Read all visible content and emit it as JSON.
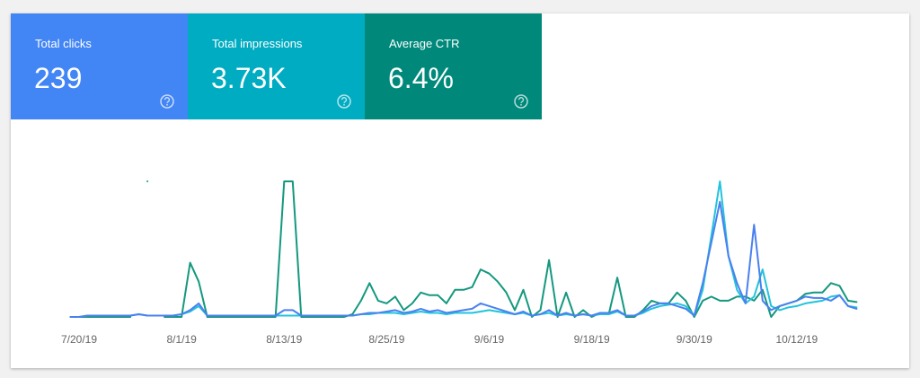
{
  "cards": [
    {
      "label": "Total clicks",
      "value": "239",
      "color": "#4285f4"
    },
    {
      "label": "Total impressions",
      "value": "3.73K",
      "color": "#00acc1"
    },
    {
      "label": "Average CTR",
      "value": "6.4%",
      "color": "#00897b"
    }
  ],
  "chart_data": {
    "type": "line",
    "x": [
      "7/19/19",
      "7/20/19",
      "7/21/19",
      "7/22/19",
      "7/23/19",
      "7/24/19",
      "7/25/19",
      "7/26/19",
      "7/27/19",
      "7/28/19",
      "7/29/19",
      "7/30/19",
      "7/31/19",
      "8/1/19",
      "8/2/19",
      "8/3/19",
      "8/4/19",
      "8/5/19",
      "8/6/19",
      "8/7/19",
      "8/8/19",
      "8/9/19",
      "8/10/19",
      "8/11/19",
      "8/12/19",
      "8/13/19",
      "8/14/19",
      "8/15/19",
      "8/16/19",
      "8/17/19",
      "8/18/19",
      "8/19/19",
      "8/20/19",
      "8/21/19",
      "8/22/19",
      "8/23/19",
      "8/24/19",
      "8/25/19",
      "8/26/19",
      "8/27/19",
      "8/28/19",
      "8/29/19",
      "8/30/19",
      "8/31/19",
      "9/1/19",
      "9/2/19",
      "9/3/19",
      "9/4/19",
      "9/5/19",
      "9/6/19",
      "9/7/19",
      "9/8/19",
      "9/9/19",
      "9/10/19",
      "9/11/19",
      "9/12/19",
      "9/13/19",
      "9/14/19",
      "9/15/19",
      "9/16/19",
      "9/17/19",
      "9/18/19",
      "9/19/19",
      "9/20/19",
      "9/21/19",
      "9/22/19",
      "9/23/19",
      "9/24/19",
      "9/25/19",
      "9/26/19",
      "9/27/19",
      "9/28/19",
      "9/29/19",
      "9/30/19",
      "10/1/19",
      "10/2/19",
      "10/3/19",
      "10/4/19",
      "10/5/19",
      "10/6/19",
      "10/7/19",
      "10/8/19",
      "10/9/19",
      "10/10/19",
      "10/11/19",
      "10/12/19",
      "10/13/19",
      "10/14/19",
      "10/15/19",
      "10/16/19",
      "10/17/19",
      "10/18/19",
      "10/19/19"
    ],
    "xticks": [
      "7/20/19",
      "8/1/19",
      "8/13/19",
      "8/25/19",
      "9/6/19",
      "9/18/19",
      "9/30/19",
      "10/12/19"
    ],
    "ylim": [
      0,
      100
    ],
    "series": [
      {
        "name": "Average CTR",
        "color": "#14987f",
        "values": [
          0,
          0,
          0,
          0,
          0,
          0,
          0,
          0,
          null,
          100,
          null,
          0,
          0,
          0,
          40,
          26,
          0,
          0,
          0,
          0,
          0,
          0,
          0,
          0,
          0,
          100,
          100,
          0,
          0,
          0,
          0,
          0,
          0,
          2,
          12,
          25,
          12,
          10,
          15,
          5,
          10,
          18,
          16,
          16,
          10,
          20,
          20,
          22,
          35,
          32,
          26,
          18,
          5,
          20,
          0,
          5,
          42,
          0,
          18,
          0,
          5,
          0,
          3,
          2,
          29,
          0,
          0,
          5,
          12,
          10,
          10,
          18,
          12,
          0,
          12,
          15,
          12,
          12,
          15,
          15,
          12,
          20,
          0,
          8,
          10,
          12,
          17,
          18,
          18,
          25,
          23,
          12,
          11
        ]
      },
      {
        "name": "Total impressions",
        "color": "#22c3dc",
        "values": [
          0,
          0,
          1,
          1,
          1,
          1,
          1,
          1,
          2,
          1,
          1,
          1,
          1,
          2,
          4,
          8,
          1,
          1,
          1,
          1,
          1,
          1,
          1,
          1,
          1,
          1,
          1,
          1,
          1,
          1,
          1,
          1,
          1,
          1,
          2,
          2,
          3,
          3,
          3,
          2,
          3,
          4,
          3,
          3,
          2,
          3,
          3,
          3,
          4,
          5,
          4,
          3,
          2,
          3,
          1,
          2,
          3,
          1,
          2,
          1,
          2,
          1,
          2,
          2,
          4,
          1,
          1,
          3,
          6,
          8,
          9,
          10,
          8,
          1,
          20,
          60,
          100,
          45,
          20,
          10,
          15,
          35,
          8,
          5,
          7,
          8,
          10,
          11,
          12,
          15,
          16,
          8,
          7
        ]
      },
      {
        "name": "Total clicks",
        "color": "#4a80f0",
        "values": [
          0,
          0,
          1,
          1,
          1,
          1,
          1,
          1,
          2,
          1,
          1,
          1,
          1,
          2,
          5,
          10,
          1,
          1,
          1,
          1,
          1,
          1,
          1,
          1,
          1,
          5,
          5,
          1,
          1,
          1,
          1,
          1,
          1,
          1,
          2,
          3,
          3,
          4,
          5,
          3,
          4,
          6,
          4,
          5,
          3,
          4,
          5,
          6,
          10,
          8,
          6,
          4,
          2,
          4,
          1,
          2,
          5,
          1,
          3,
          1,
          2,
          1,
          3,
          3,
          5,
          1,
          1,
          4,
          8,
          10,
          10,
          8,
          6,
          1,
          25,
          55,
          85,
          45,
          25,
          10,
          68,
          12,
          5,
          8,
          10,
          12,
          15,
          14,
          14,
          12,
          16,
          8,
          6
        ]
      }
    ]
  }
}
